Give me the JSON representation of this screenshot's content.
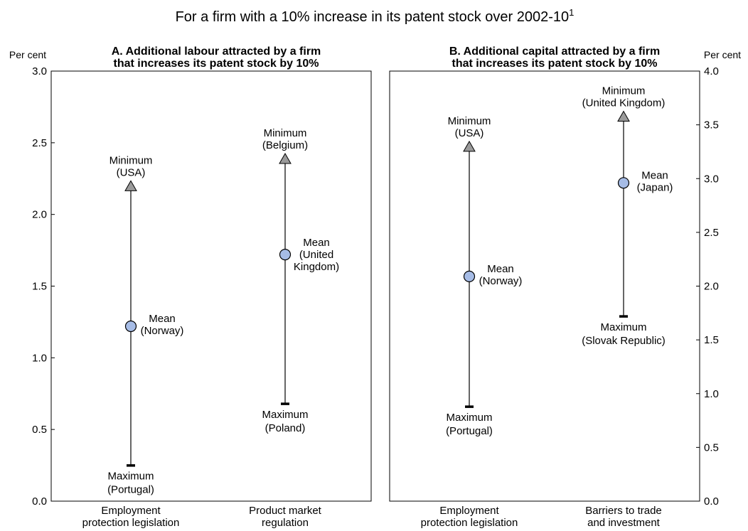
{
  "chart_data": {
    "title": "For a firm with a 10% increase in its patent stock over 2002-10",
    "title_sup": "1",
    "panels": [
      {
        "id": "A",
        "type": "range",
        "title_lines": [
          "A. Additional labour attracted by a firm",
          "that increases its patent stock by 10%"
        ],
        "ylabel": "Per cent",
        "ylim": [
          0,
          3
        ],
        "yticks": [
          0,
          0.5,
          1,
          1.5,
          2,
          2.5,
          3
        ],
        "axis_side": "left",
        "categories": [
          {
            "label_lines": [
              "Employment",
              "protection legislation"
            ],
            "min": {
              "value": 2.2,
              "label_lines": [
                "Minimum",
                "(USA)"
              ]
            },
            "mean": {
              "value": 1.22,
              "label_lines": [
                "Mean",
                "(Norway)"
              ]
            },
            "max": {
              "value": 0.25,
              "label_lines": [
                "Maximum",
                "(Portugal)"
              ]
            }
          },
          {
            "label_lines": [
              "Product market",
              "regulation"
            ],
            "min": {
              "value": 2.39,
              "label_lines": [
                "Minimum",
                "(Belgium)"
              ]
            },
            "mean": {
              "value": 1.72,
              "label_lines": [
                "Mean",
                "(United",
                "Kingdom)"
              ]
            },
            "max": {
              "value": 0.68,
              "label_lines": [
                "Maximum",
                "(Poland)"
              ]
            }
          }
        ]
      },
      {
        "id": "B",
        "type": "range",
        "title_lines": [
          "B. Additional capital attracted by a firm",
          "that increases its patent stock by 10%"
        ],
        "ylabel": "Per cent",
        "ylim": [
          0,
          4
        ],
        "yticks": [
          0,
          0.5,
          1,
          1.5,
          2,
          2.5,
          3,
          3.5,
          4
        ],
        "axis_side": "right",
        "categories": [
          {
            "label_lines": [
              "Employment",
              "protection legislation"
            ],
            "min": {
              "value": 3.3,
              "label_lines": [
                "Minimum",
                "(USA)"
              ]
            },
            "mean": {
              "value": 2.09,
              "label_lines": [
                "Mean",
                "(Norway)"
              ]
            },
            "max": {
              "value": 0.88,
              "label_lines": [
                "Maximum",
                "(Portugal)"
              ]
            }
          },
          {
            "label_lines": [
              "Barriers to trade",
              "and investment"
            ],
            "min": {
              "value": 3.58,
              "label_lines": [
                "Minimum",
                "(United Kingdom)"
              ]
            },
            "mean": {
              "value": 2.96,
              "label_lines": [
                "Mean",
                "(Japan)"
              ]
            },
            "max": {
              "value": 1.72,
              "label_lines": [
                "Maximum",
                "(Slovak Republic)"
              ]
            }
          }
        ]
      }
    ]
  }
}
